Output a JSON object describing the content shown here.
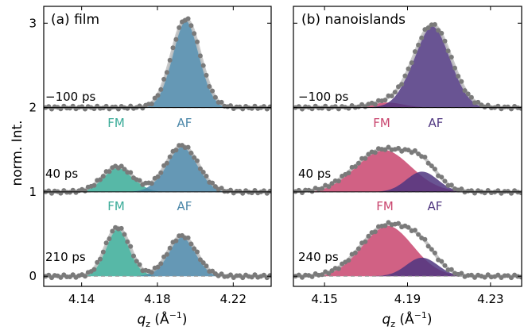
{
  "y_axis": {
    "label": "norm. Int.",
    "ticks": [
      "0",
      "1",
      "2",
      "3"
    ]
  },
  "panels": [
    {
      "title": "(a) film",
      "x_axis_label": "q",
      "x_axis_sub": "z",
      "x_axis_unit": " (Å",
      "x_axis_exp": "−1",
      "x_axis_close": ")",
      "x_ticks": [
        "4.14",
        "4.18",
        "4.22"
      ],
      "rows": [
        {
          "delay": "−100 ps",
          "fm_label": "",
          "af_label": ""
        },
        {
          "delay": "40 ps",
          "fm_label": "FM",
          "af_label": "AF"
        },
        {
          "delay": "210 ps",
          "fm_label": "FM",
          "af_label": "AF"
        }
      ]
    },
    {
      "title": "(b) nanoislands",
      "x_axis_label": "q",
      "x_axis_sub": "z",
      "x_axis_unit": " (Å",
      "x_axis_exp": "−1",
      "x_axis_close": ")",
      "x_ticks": [
        "4.15",
        "4.19",
        "4.23"
      ],
      "rows": [
        {
          "delay": "−100 ps",
          "fm_label": "FM",
          "af_label": "AF"
        },
        {
          "delay": "40 ps",
          "fm_label": "FM",
          "af_label": "AF"
        },
        {
          "delay": "240 ps",
          "fm_label": "FM",
          "af_label": "AF"
        }
      ]
    }
  ],
  "colors": {
    "film_fm": "#3aab98",
    "film_af": "#4a86a8",
    "island_fm": "#c9456e",
    "island_af": "#4f3680",
    "fit": "#c2c2c2",
    "points": "#7a7a7a",
    "baseline": "#9a9a9a"
  },
  "chart_data": [
    {
      "type": "area",
      "panel": "(a) film",
      "x_range": [
        4.12,
        4.24
      ],
      "y_range": [
        -0.12,
        3.2
      ],
      "series": [
        {
          "name": "AF",
          "offset": 2,
          "peak_x": 4.195,
          "peak_height": 1.05,
          "sigma": 0.0075
        },
        {
          "name": "FM",
          "offset": 1,
          "peak_x": 4.159,
          "peak_height": 0.3,
          "sigma": 0.008
        },
        {
          "name": "AF",
          "offset": 1,
          "peak_x": 4.193,
          "peak_height": 0.55,
          "sigma": 0.0085
        },
        {
          "name": "FM",
          "offset": 0,
          "peak_x": 4.159,
          "peak_height": 0.58,
          "sigma": 0.0065
        },
        {
          "name": "AF",
          "offset": 0,
          "peak_x": 4.193,
          "peak_height": 0.48,
          "sigma": 0.0075
        }
      ]
    },
    {
      "type": "area",
      "panel": "(b) nanoislands",
      "x_range": [
        4.135,
        4.245
      ],
      "y_range": [
        -0.12,
        3.2
      ],
      "series": [
        {
          "name": "FM",
          "offset": 2,
          "peak_x": 4.18,
          "peak_height": 0.06,
          "sigma": 0.008
        },
        {
          "name": "AF",
          "offset": 2,
          "peak_x": 4.202,
          "peak_height": 0.98,
          "sigma": 0.009
        },
        {
          "name": "FM",
          "offset": 1,
          "peak_x": 4.178,
          "peak_height": 0.5,
          "sigma": 0.0135
        },
        {
          "name": "AF",
          "offset": 1,
          "peak_x": 4.197,
          "peak_height": 0.24,
          "sigma": 0.0075
        },
        {
          "name": "FM",
          "offset": 0,
          "peak_x": 4.18,
          "peak_height": 0.6,
          "sigma": 0.0125
        },
        {
          "name": "AF",
          "offset": 0,
          "peak_x": 4.197,
          "peak_height": 0.22,
          "sigma": 0.0075
        }
      ]
    }
  ]
}
